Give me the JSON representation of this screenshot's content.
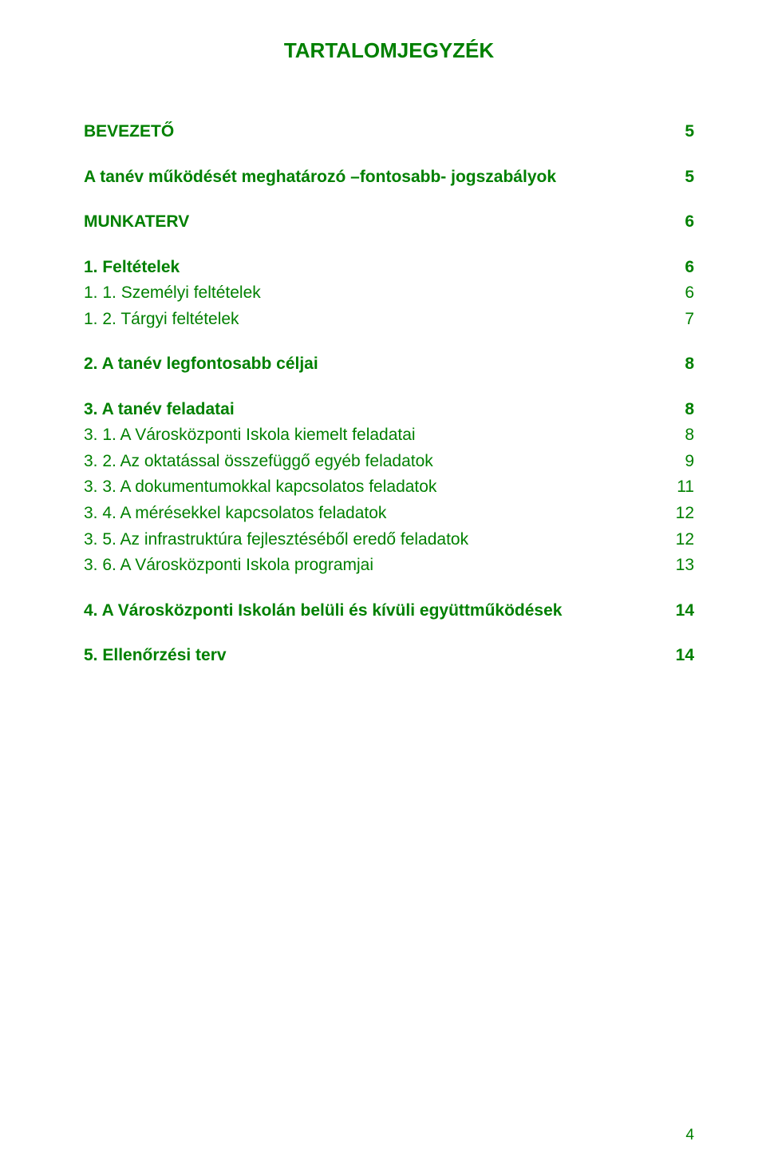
{
  "title": "TARTALOMJEGYZÉK",
  "text_color": "#008000",
  "background_color": "#ffffff",
  "font_family": "Comic Sans MS",
  "page_number": "4",
  "entries": [
    {
      "label": "BEVEZETŐ",
      "page": "5",
      "bold": true
    },
    {
      "label": "A tanév működését meghatározó –fontosabb- jogszabályok",
      "page": "5",
      "bold": true
    },
    {
      "label": "MUNKATERV",
      "page": "6",
      "bold": true
    },
    {
      "label": "1. Feltételek",
      "page": "6",
      "bold": true
    },
    {
      "label": "1. 1. Személyi feltételek",
      "page": "6",
      "bold": false
    },
    {
      "label": "1. 2. Tárgyi feltételek",
      "page": "7",
      "bold": false
    },
    {
      "label": "2. A tanév legfontosabb céljai",
      "page": "8",
      "bold": true
    },
    {
      "label": "3. A tanév feladatai",
      "page": "8",
      "bold": true
    },
    {
      "label": "3. 1. A Városközponti Iskola kiemelt feladatai",
      "page": "8",
      "bold": false
    },
    {
      "label": "3. 2. Az oktatással összefüggő egyéb feladatok",
      "page": "9",
      "bold": false
    },
    {
      "label": "3. 3. A dokumentumokkal kapcsolatos feladatok",
      "page": "11",
      "bold": false
    },
    {
      "label": "3.  4. A mérésekkel kapcsolatos feladatok",
      "page": "12",
      "bold": false
    },
    {
      "label": "3. 5. Az infrastruktúra fejlesztéséből eredő feladatok",
      "page": "12",
      "bold": false
    },
    {
      "label": "3. 6. A Városközponti Iskola programjai",
      "page": "13",
      "bold": false
    },
    {
      "label": "4. A Városközponti Iskolán belüli és kívüli együttműködések",
      "page": "14",
      "bold": true
    },
    {
      "label": "5. Ellenőrzési terv",
      "page": "14",
      "bold": true
    }
  ]
}
